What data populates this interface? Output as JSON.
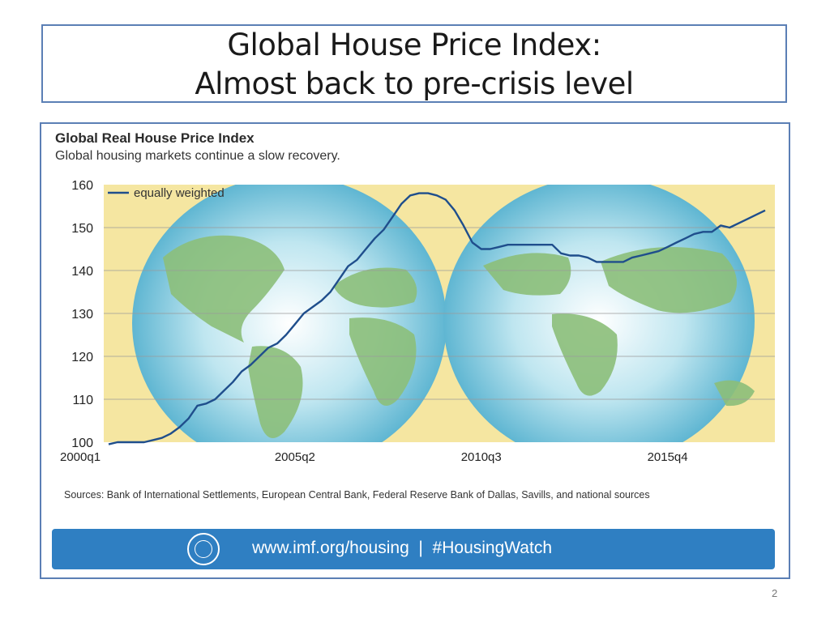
{
  "slide": {
    "title_line1": "Global House Price Index:",
    "title_line2": "Almost back to pre-crisis level",
    "page_number": "2"
  },
  "banner": {
    "text": "www.imf.org/housing  |  #HousingWatch",
    "logo": "imf-seal-icon"
  },
  "colors": {
    "plot_background": "#f5e6a1",
    "line": "#1f4e8c",
    "globe": "#8fd0e3",
    "land": "#8cbf7a",
    "banner": "#2f7fc2",
    "border": "#5b7fb5"
  },
  "chart_data": {
    "type": "line",
    "title": "Global Real House Price Index",
    "subtitle": "Global housing markets continue a slow recovery.",
    "xlabel": "",
    "ylabel": "",
    "ylim": [
      100,
      160
    ],
    "yticks": [
      100,
      110,
      120,
      130,
      140,
      150,
      160
    ],
    "x_tick_labels": [
      "2000q1",
      "2005q2",
      "2010q3",
      "2015q4"
    ],
    "x_tick_indices": [
      0,
      21,
      42,
      63
    ],
    "legend": {
      "position": "top-left",
      "entries": [
        "equally weighted"
      ]
    },
    "grid": "horizontal",
    "source": "Sources: Bank of International Settlements, European Central Bank, Federal Reserve Bank of Dallas, Savills, and national sources",
    "series": [
      {
        "name": "equally weighted",
        "x_start": "2000q1",
        "frequency": "quarterly",
        "values": [
          99.5,
          100,
          100,
          100,
          100,
          100.5,
          101,
          102,
          103.5,
          105.5,
          108.5,
          109,
          110,
          112,
          114,
          116.5,
          118,
          120,
          122,
          123,
          125,
          127.5,
          130,
          131.5,
          133,
          135,
          138,
          141,
          142.5,
          145,
          147.5,
          149.5,
          152.5,
          155.5,
          157.5,
          158,
          158,
          157.5,
          156.5,
          154,
          150.5,
          146.5,
          145,
          145,
          145.5,
          146,
          146,
          146,
          146,
          146,
          146,
          144,
          143.5,
          143.5,
          143,
          142,
          142,
          142,
          142,
          143,
          143.5,
          144,
          144.5,
          145.5,
          146.5,
          147.5,
          148.5,
          149,
          149,
          150.5,
          150,
          151,
          152,
          153,
          154
        ]
      }
    ]
  }
}
